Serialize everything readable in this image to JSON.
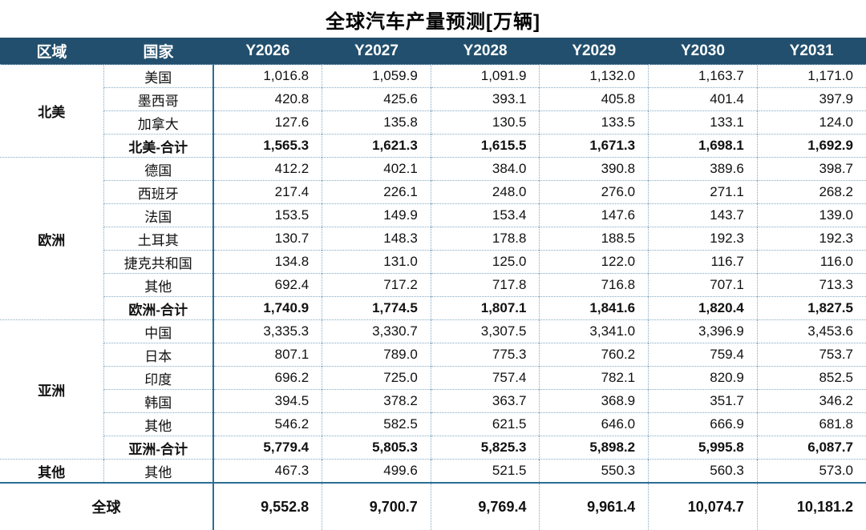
{
  "title": "全球汽车产量预测[万辆]",
  "colors": {
    "header_bg": "#224f6d",
    "header_text": "#ffffff",
    "solid_line": "#2d6e93",
    "dotted_line": "#84a9c4",
    "body_text": "#111111"
  },
  "chart_data": {
    "type": "table",
    "title": "全球汽车产量预测[万辆]",
    "unit": "万辆",
    "columns": [
      "区域",
      "国家",
      "Y2026",
      "Y2027",
      "Y2028",
      "Y2029",
      "Y2030",
      "Y2031"
    ],
    "rows": [
      {
        "region": "北美",
        "country": "美国",
        "v": [
          "1,016.8",
          "1,059.9",
          "1,091.9",
          "1,132.0",
          "1,163.7",
          "1,171.0"
        ]
      },
      {
        "country": "墨西哥",
        "v": [
          "420.8",
          "425.6",
          "393.1",
          "405.8",
          "401.4",
          "397.9"
        ]
      },
      {
        "country": "加拿大",
        "v": [
          "127.6",
          "135.8",
          "130.5",
          "133.5",
          "133.1",
          "124.0"
        ]
      },
      {
        "country": "北美-合计",
        "v": [
          "1,565.3",
          "1,621.3",
          "1,615.5",
          "1,671.3",
          "1,698.1",
          "1,692.9"
        ]
      },
      {
        "region": "欧洲",
        "country": "德国",
        "v": [
          "412.2",
          "402.1",
          "384.0",
          "390.8",
          "389.6",
          "398.7"
        ]
      },
      {
        "country": "西班牙",
        "v": [
          "217.4",
          "226.1",
          "248.0",
          "276.0",
          "271.1",
          "268.2"
        ]
      },
      {
        "country": "法国",
        "v": [
          "153.5",
          "149.9",
          "153.4",
          "147.6",
          "143.7",
          "139.0"
        ]
      },
      {
        "country": "土耳其",
        "v": [
          "130.7",
          "148.3",
          "178.8",
          "188.5",
          "192.3",
          "192.3"
        ]
      },
      {
        "country": "捷克共和国",
        "v": [
          "134.8",
          "131.0",
          "125.0",
          "122.0",
          "116.7",
          "116.0"
        ]
      },
      {
        "country": "其他",
        "v": [
          "692.4",
          "717.2",
          "717.8",
          "716.8",
          "707.1",
          "713.3"
        ]
      },
      {
        "country": "欧洲-合计",
        "v": [
          "1,740.9",
          "1,774.5",
          "1,807.1",
          "1,841.6",
          "1,820.4",
          "1,827.5"
        ]
      },
      {
        "region": "亚洲",
        "country": "中国",
        "v": [
          "3,335.3",
          "3,330.7",
          "3,307.5",
          "3,341.0",
          "3,396.9",
          "3,453.6"
        ]
      },
      {
        "country": "日本",
        "v": [
          "807.1",
          "789.0",
          "775.3",
          "760.2",
          "759.4",
          "753.7"
        ]
      },
      {
        "country": "印度",
        "v": [
          "696.2",
          "725.0",
          "757.4",
          "782.1",
          "820.9",
          "852.5"
        ]
      },
      {
        "country": "韩国",
        "v": [
          "394.5",
          "378.2",
          "363.7",
          "368.9",
          "351.7",
          "346.2"
        ]
      },
      {
        "country": "其他",
        "v": [
          "546.2",
          "582.5",
          "621.5",
          "646.0",
          "666.9",
          "681.8"
        ]
      },
      {
        "country": "亚洲-合计",
        "v": [
          "5,779.4",
          "5,805.3",
          "5,825.3",
          "5,898.2",
          "5,995.8",
          "6,087.7"
        ]
      },
      {
        "region": "其他",
        "country": "其他",
        "v": [
          "467.3",
          "499.6",
          "521.5",
          "550.3",
          "560.3",
          "573.0"
        ]
      }
    ],
    "global_row": {
      "label": "全球",
      "v": [
        "9,552.8",
        "9,700.7",
        "9,769.4",
        "9,961.4",
        "10,074.7",
        "10,181.2"
      ]
    }
  }
}
